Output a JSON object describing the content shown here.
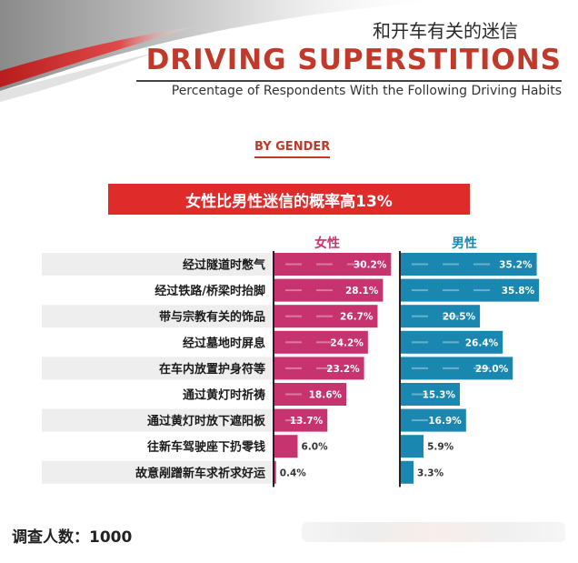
{
  "header": {
    "title_cn": "和开车有关的迷信",
    "title_en": "DRIVING SUPERSTITIONS",
    "subtitle": "Percentage of Respondents With the Following Driving Habits",
    "section_label": "BY GENDER",
    "banner": "女性比男性迷信的概率高13%"
  },
  "footer": {
    "sample_size": "调查人数：1000"
  },
  "colors": {
    "female": "#c7336f",
    "male": "#1a87b0",
    "title_red": "#c0392b",
    "banner_red": "#e02b2b",
    "row_shade": "#eeeeee"
  },
  "chart_data": {
    "type": "bar",
    "orientation": "horizontal",
    "title": "",
    "xlabel": "",
    "ylabel": "",
    "xlim": [
      0,
      40
    ],
    "grid": false,
    "legend": "top",
    "categories": [
      "经过隧道时憋气",
      "经过铁路/桥梁时抬脚",
      "带与宗教有关的饰品",
      "经过墓地时屏息",
      "在车内放置护身符等",
      "通过黄灯时祈祷",
      "通过黄灯时放下遮阳板",
      "往新车驾驶座下扔零钱",
      "故意剐蹭新车求祈求好运"
    ],
    "series": [
      {
        "name": "女性",
        "values": [
          30.2,
          28.1,
          26.7,
          24.2,
          23.2,
          18.6,
          13.7,
          6.0,
          0.4
        ],
        "labels": [
          "30.2%",
          "28.1%",
          "26.7%",
          "24.2%",
          "23.2%",
          "18.6%",
          "13.7%",
          "6.0%",
          "0.4%"
        ]
      },
      {
        "name": "男性",
        "values": [
          35.2,
          35.8,
          20.5,
          26.4,
          29.0,
          15.3,
          16.9,
          5.9,
          3.3
        ],
        "labels": [
          "35.2%",
          "35.8%",
          "20.5%",
          "26.4%",
          "29.0%",
          "15.3%",
          "16.9%",
          "5.9%",
          "3.3%"
        ]
      }
    ]
  }
}
